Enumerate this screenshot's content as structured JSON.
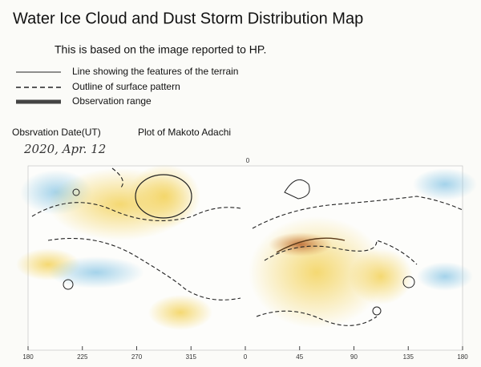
{
  "header": {
    "title": "Water Ice Cloud and Dust Storm Distribution Map",
    "subtitle": "This is based on the image reported to HP."
  },
  "legend": [
    "Line showing the features of the terrain",
    "Outline of surface pattern",
    "Observation range"
  ],
  "info": {
    "date_label": "Obsrvation Date(UT)",
    "author": "Plot of Makoto Adachi",
    "date": "2020, Apr. 12"
  },
  "map": {
    "top_label": "0",
    "longitude_labels": [
      "180",
      "225",
      "270",
      "315",
      "0",
      "45",
      "90",
      "135",
      "180"
    ]
  }
}
